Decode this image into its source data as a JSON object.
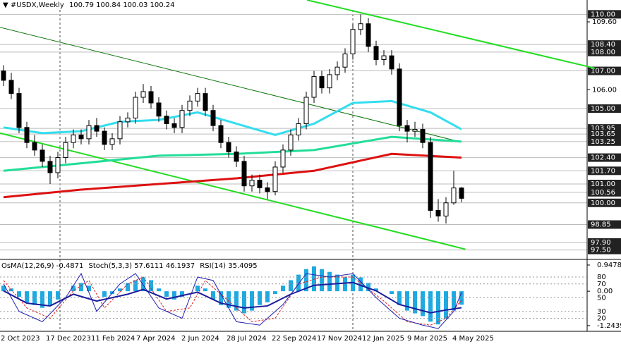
{
  "chart_data": {
    "type": "candlestick",
    "symbol": "#USDX,Weekly",
    "header_values": [
      100.79,
      100.84,
      100.03,
      100.24
    ],
    "open": [
      107.0,
      106.5,
      105.8,
      104.0,
      103.2,
      102.8,
      102.2,
      101.6,
      102.4,
      103.2,
      103.6,
      103.4,
      104.1,
      103.8,
      103.1,
      103.4,
      104.3,
      104.5,
      105.6,
      105.9,
      105.3,
      104.6,
      104.2,
      104.0,
      104.9,
      105.4,
      105.8,
      104.9,
      104.1,
      103.2,
      102.7,
      102.2,
      100.9,
      101.2,
      100.8,
      100.6,
      101.9,
      102.8,
      103.6,
      104.2,
      105.6,
      106.7,
      106.1,
      106.8,
      107.2,
      107.9,
      109.2,
      109.5,
      108.3,
      107.6,
      107.8,
      107.1,
      104.1,
      103.8,
      103.9,
      103.2,
      99.6,
      99.3,
      100.0,
      100.79
    ],
    "high": [
      107.3,
      106.9,
      106.1,
      104.3,
      103.6,
      103.1,
      102.5,
      102.7,
      103.5,
      103.9,
      103.9,
      104.4,
      104.5,
      104.0,
      103.7,
      104.6,
      104.8,
      105.9,
      106.3,
      106.2,
      105.6,
      104.9,
      104.5,
      105.2,
      105.7,
      106.1,
      106.1,
      105.2,
      104.4,
      103.5,
      103.0,
      102.5,
      101.5,
      101.5,
      101.1,
      102.2,
      103.1,
      103.9,
      104.5,
      105.9,
      107.0,
      107.0,
      107.1,
      107.5,
      108.2,
      109.5,
      110.0,
      109.8,
      108.6,
      108.1,
      108.1,
      107.4,
      104.4,
      104.3,
      104.2,
      103.5,
      100.2,
      100.3,
      101.7,
      100.84
    ],
    "low": [
      106.2,
      105.5,
      103.7,
      102.9,
      102.5,
      101.9,
      101.0,
      101.3,
      102.1,
      102.9,
      103.1,
      103.1,
      103.5,
      102.8,
      102.8,
      103.1,
      104.0,
      104.2,
      105.3,
      105.0,
      104.3,
      103.9,
      103.7,
      103.7,
      104.6,
      105.1,
      104.6,
      103.8,
      102.9,
      102.4,
      101.9,
      100.6,
      100.6,
      100.5,
      100.2,
      100.4,
      101.6,
      102.5,
      103.3,
      103.9,
      105.3,
      105.8,
      105.8,
      106.5,
      106.9,
      107.6,
      108.9,
      108.0,
      107.3,
      107.3,
      106.8,
      103.8,
      103.2,
      103.5,
      102.9,
      99.2,
      99.0,
      98.9,
      99.9,
      100.03
    ],
    "close": [
      106.5,
      105.8,
      104.0,
      103.2,
      102.8,
      102.2,
      101.6,
      102.4,
      103.2,
      103.6,
      103.4,
      104.1,
      103.8,
      103.1,
      103.4,
      104.3,
      104.5,
      105.6,
      105.9,
      105.3,
      104.6,
      104.2,
      104.0,
      104.9,
      105.4,
      105.8,
      104.9,
      104.1,
      103.2,
      102.7,
      102.2,
      100.9,
      101.2,
      100.8,
      100.6,
      101.9,
      102.8,
      103.6,
      104.2,
      105.6,
      106.7,
      106.1,
      106.8,
      107.2,
      107.9,
      109.2,
      109.5,
      108.3,
      107.6,
      107.8,
      107.1,
      104.1,
      103.8,
      103.9,
      103.2,
      99.6,
      99.3,
      100.0,
      100.79,
      100.24
    ],
    "dates": [
      "2 Oct 2023",
      "17 Dec 2023",
      "11 Feb 2024",
      "7 Apr 2024",
      "2 Jun 2024",
      "28 Jul 2024",
      "22 Sep 2024",
      "17 Nov 2024",
      "12 Jan 2025",
      "9 Mar 2025",
      "4 May 2025"
    ],
    "ylim": [
      97.0,
      110.76
    ],
    "yticks": [
      {
        "value": 109.6,
        "label": "109.60"
      },
      {
        "value": 106,
        "label": "106.00"
      }
    ],
    "levels": [
      {
        "value": 110,
        "label": "110.00"
      },
      {
        "value": 108.4,
        "label": "108.40"
      },
      {
        "value": 108,
        "label": "108.00"
      },
      {
        "value": 107,
        "label": "107.00"
      },
      {
        "value": 105,
        "label": "105.00"
      },
      {
        "value": 103.95,
        "label": "103.95"
      },
      {
        "value": 103.65,
        "label": "103.65"
      },
      {
        "value": 103.25,
        "label": "103.25"
      },
      {
        "value": 102.4,
        "label": "102.40"
      },
      {
        "value": 101.7,
        "label": "101.70"
      },
      {
        "value": 101,
        "label": "101.00"
      },
      {
        "value": 100.56,
        "label": "100.56"
      },
      {
        "value": 100,
        "label": "100.00"
      },
      {
        "value": 98.85,
        "label": "98.85"
      },
      {
        "value": 97.9,
        "label": "97.90"
      },
      {
        "value": 97.5,
        "label": "97.50"
      }
    ],
    "moving_averages": [
      {
        "color": "#33ddee",
        "x": [
          0,
          5,
          10,
          15,
          20,
          25,
          30,
          35,
          40,
          45,
          50,
          55,
          59
        ],
        "values": [
          104.0,
          103.7,
          103.8,
          104.3,
          104.4,
          104.8,
          104.2,
          103.6,
          104.2,
          105.3,
          105.4,
          104.8,
          103.9
        ]
      },
      {
        "color": "#22dd99",
        "x": [
          0,
          10,
          20,
          30,
          40,
          50,
          59
        ],
        "values": [
          101.7,
          102.1,
          102.5,
          102.6,
          102.8,
          103.5,
          103.25
        ]
      },
      {
        "color": "#dd1111",
        "x": [
          0,
          10,
          20,
          30,
          40,
          50,
          59
        ],
        "values": [
          100.3,
          100.7,
          101.0,
          101.3,
          101.7,
          102.6,
          102.4
        ]
      }
    ],
    "trendlines": [
      {
        "color": "#22dd22",
        "x": [
          39.1,
          76.2
        ],
        "values": [
          110.76,
          107.14
        ]
      },
      {
        "color": "#22dd22",
        "x": [
          -0.45,
          59.5
        ],
        "values": [
          103.7,
          97.54
        ]
      },
      {
        "color": "#117711",
        "x": [
          -0.45,
          58.6
        ],
        "values": [
          109.31,
          103.26
        ]
      }
    ],
    "oscillator": {
      "osma_label": "OsMA(12,26,9)",
      "osma_value": -0.4871,
      "stoch_label": "Stoch(5,3,3)",
      "stoch_main": 57.6111,
      "stoch_signal": 46.1937,
      "rsi_label": "RSI(14)",
      "rsi_value": 35.4095,
      "osma": [
        0.2,
        0.1,
        -0.2,
        -0.4,
        -0.5,
        -0.6,
        -0.5,
        -0.3,
        0.0,
        0.2,
        0.3,
        0.2,
        0.0,
        -0.2,
        -0.1,
        0.1,
        0.3,
        0.4,
        0.5,
        0.4,
        0.1,
        -0.2,
        -0.3,
        -0.2,
        0.0,
        0.2,
        0.1,
        -0.3,
        -0.5,
        -0.6,
        -0.7,
        -0.8,
        -0.7,
        -0.5,
        -0.4,
        -0.1,
        0.2,
        0.4,
        0.6,
        0.8,
        0.9,
        0.8,
        0.7,
        0.6,
        0.5,
        0.6,
        0.5,
        0.3,
        0.1,
        0.0,
        -0.1,
        -0.5,
        -0.7,
        -0.8,
        -0.9,
        -1.1,
        -1.2,
        -1.0,
        -0.7,
        -0.4871
      ],
      "osma_lim": [
        -1.45,
        1.1
      ],
      "osma_ticks": [
        0.9478,
        {
          "value": 0,
          "label": "0.00"
        },
        -1.2439
      ],
      "ylim": [
        0,
        100
      ],
      "yticks": [
        80,
        70,
        50,
        30,
        20
      ],
      "rsi": {
        "x": [
          0,
          3,
          6,
          9,
          12,
          16,
          18,
          21,
          25,
          28,
          31,
          34,
          37,
          40,
          45,
          48,
          51,
          55,
          57,
          59
        ],
        "values": [
          60,
          42,
          38,
          55,
          45,
          55,
          62,
          48,
          58,
          42,
          35,
          38,
          55,
          68,
          72,
          60,
          40,
          28,
          32,
          35.4095
        ]
      },
      "stoch": {
        "x": [
          0,
          2,
          5,
          8,
          10,
          12,
          15,
          17,
          20,
          23,
          25,
          27,
          30,
          33,
          36,
          39,
          42,
          45,
          48,
          51,
          54,
          56,
          58,
          59
        ],
        "values": [
          70,
          30,
          15,
          50,
          85,
          30,
          70,
          85,
          35,
          20,
          80,
          75,
          15,
          10,
          40,
          85,
          80,
          85,
          50,
          20,
          10,
          5,
          30,
          57.6111
        ]
      },
      "signal": {
        "x": [
          0,
          3,
          6,
          9,
          11,
          13,
          16,
          18,
          21,
          24,
          26,
          29,
          32,
          35,
          38,
          41,
          45,
          49,
          52,
          55,
          57,
          59
        ],
        "values": [
          75,
          35,
          20,
          60,
          75,
          35,
          70,
          80,
          30,
          35,
          75,
          45,
          15,
          20,
          70,
          80,
          80,
          45,
          15,
          10,
          20,
          46.1937
        ]
      }
    }
  }
}
